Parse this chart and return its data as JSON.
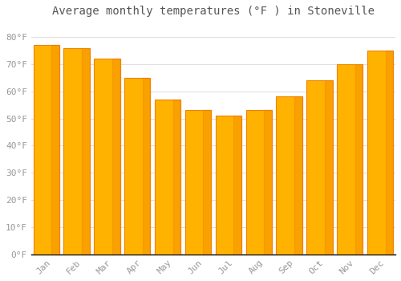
{
  "title": "Average monthly temperatures (°F ) in Stoneville",
  "months": [
    "Jan",
    "Feb",
    "Mar",
    "Apr",
    "May",
    "Jun",
    "Jul",
    "Aug",
    "Sep",
    "Oct",
    "Nov",
    "Dec"
  ],
  "values": [
    77,
    76,
    72,
    65,
    57,
    53,
    51,
    53,
    58,
    64,
    70,
    75
  ],
  "bar_color_light": "#FFB300",
  "bar_color_dark": "#F08000",
  "background_color": "#FFFFFF",
  "grid_color": "#DDDDDD",
  "ytick_labels": [
    "0°F",
    "10°F",
    "20°F",
    "30°F",
    "40°F",
    "50°F",
    "60°F",
    "70°F",
    "80°F"
  ],
  "ytick_values": [
    0,
    10,
    20,
    30,
    40,
    50,
    60,
    70,
    80
  ],
  "ylim": [
    0,
    85
  ],
  "title_fontsize": 10,
  "tick_fontsize": 8,
  "tick_color": "#999999",
  "title_color": "#555555",
  "bar_width": 0.85
}
